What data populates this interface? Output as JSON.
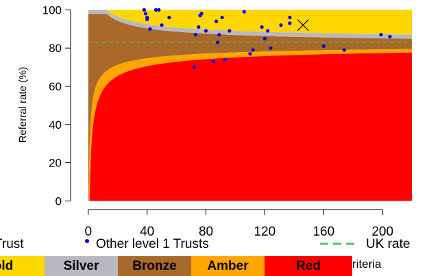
{
  "chart_data": {
    "type": "scatter",
    "title": "",
    "xlabel": "",
    "ylabel": "Referral rate (%)",
    "xlim": [
      -12,
      226
    ],
    "ylim": [
      -4.5,
      103
    ],
    "xticks": [
      "0",
      "40",
      "80",
      "120",
      "160",
      "200"
    ],
    "yticks": [
      "0",
      "20",
      "40",
      "60",
      "80",
      "100"
    ],
    "uk_rate": 83,
    "bands": [
      {
        "name": "Gold",
        "color": "#FFD700"
      },
      {
        "name": "Silver",
        "color": "#B8B8C0"
      },
      {
        "name": "Bronze",
        "color": "#A8692A"
      },
      {
        "name": "Amber",
        "color": "#FFA500"
      },
      {
        "name": "Red",
        "color": "#FF0000"
      }
    ],
    "highlighted_trust": {
      "x": 146,
      "y": 92
    },
    "series": [
      {
        "name": "Other level 1 Trusts",
        "x": [
          38,
          39,
          40,
          40,
          42,
          46,
          48,
          50,
          55,
          72,
          73,
          75,
          76,
          77,
          80,
          85,
          87,
          88,
          89,
          91,
          93,
          96,
          106,
          110,
          112,
          118,
          120,
          122,
          124,
          131,
          137,
          137,
          160,
          174,
          199,
          205
        ],
        "y": [
          100,
          98,
          96,
          95,
          90,
          100,
          100,
          92,
          96,
          70,
          87,
          91,
          97,
          98,
          89,
          73,
          94,
          83,
          87,
          96,
          74,
          89,
          99,
          77,
          79,
          91,
          85,
          89,
          80,
          92,
          93,
          96,
          81,
          79,
          87,
          86
        ]
      }
    ]
  },
  "legend": {
    "trust_label": "Trust",
    "others_label": "Other level 1 Trusts",
    "uk_label": "UK rate"
  },
  "criteria": {
    "labels": [
      "Gold",
      "Silver",
      "Bronze",
      "Amber",
      "Red"
    ],
    "trailing_text": "riteria"
  }
}
